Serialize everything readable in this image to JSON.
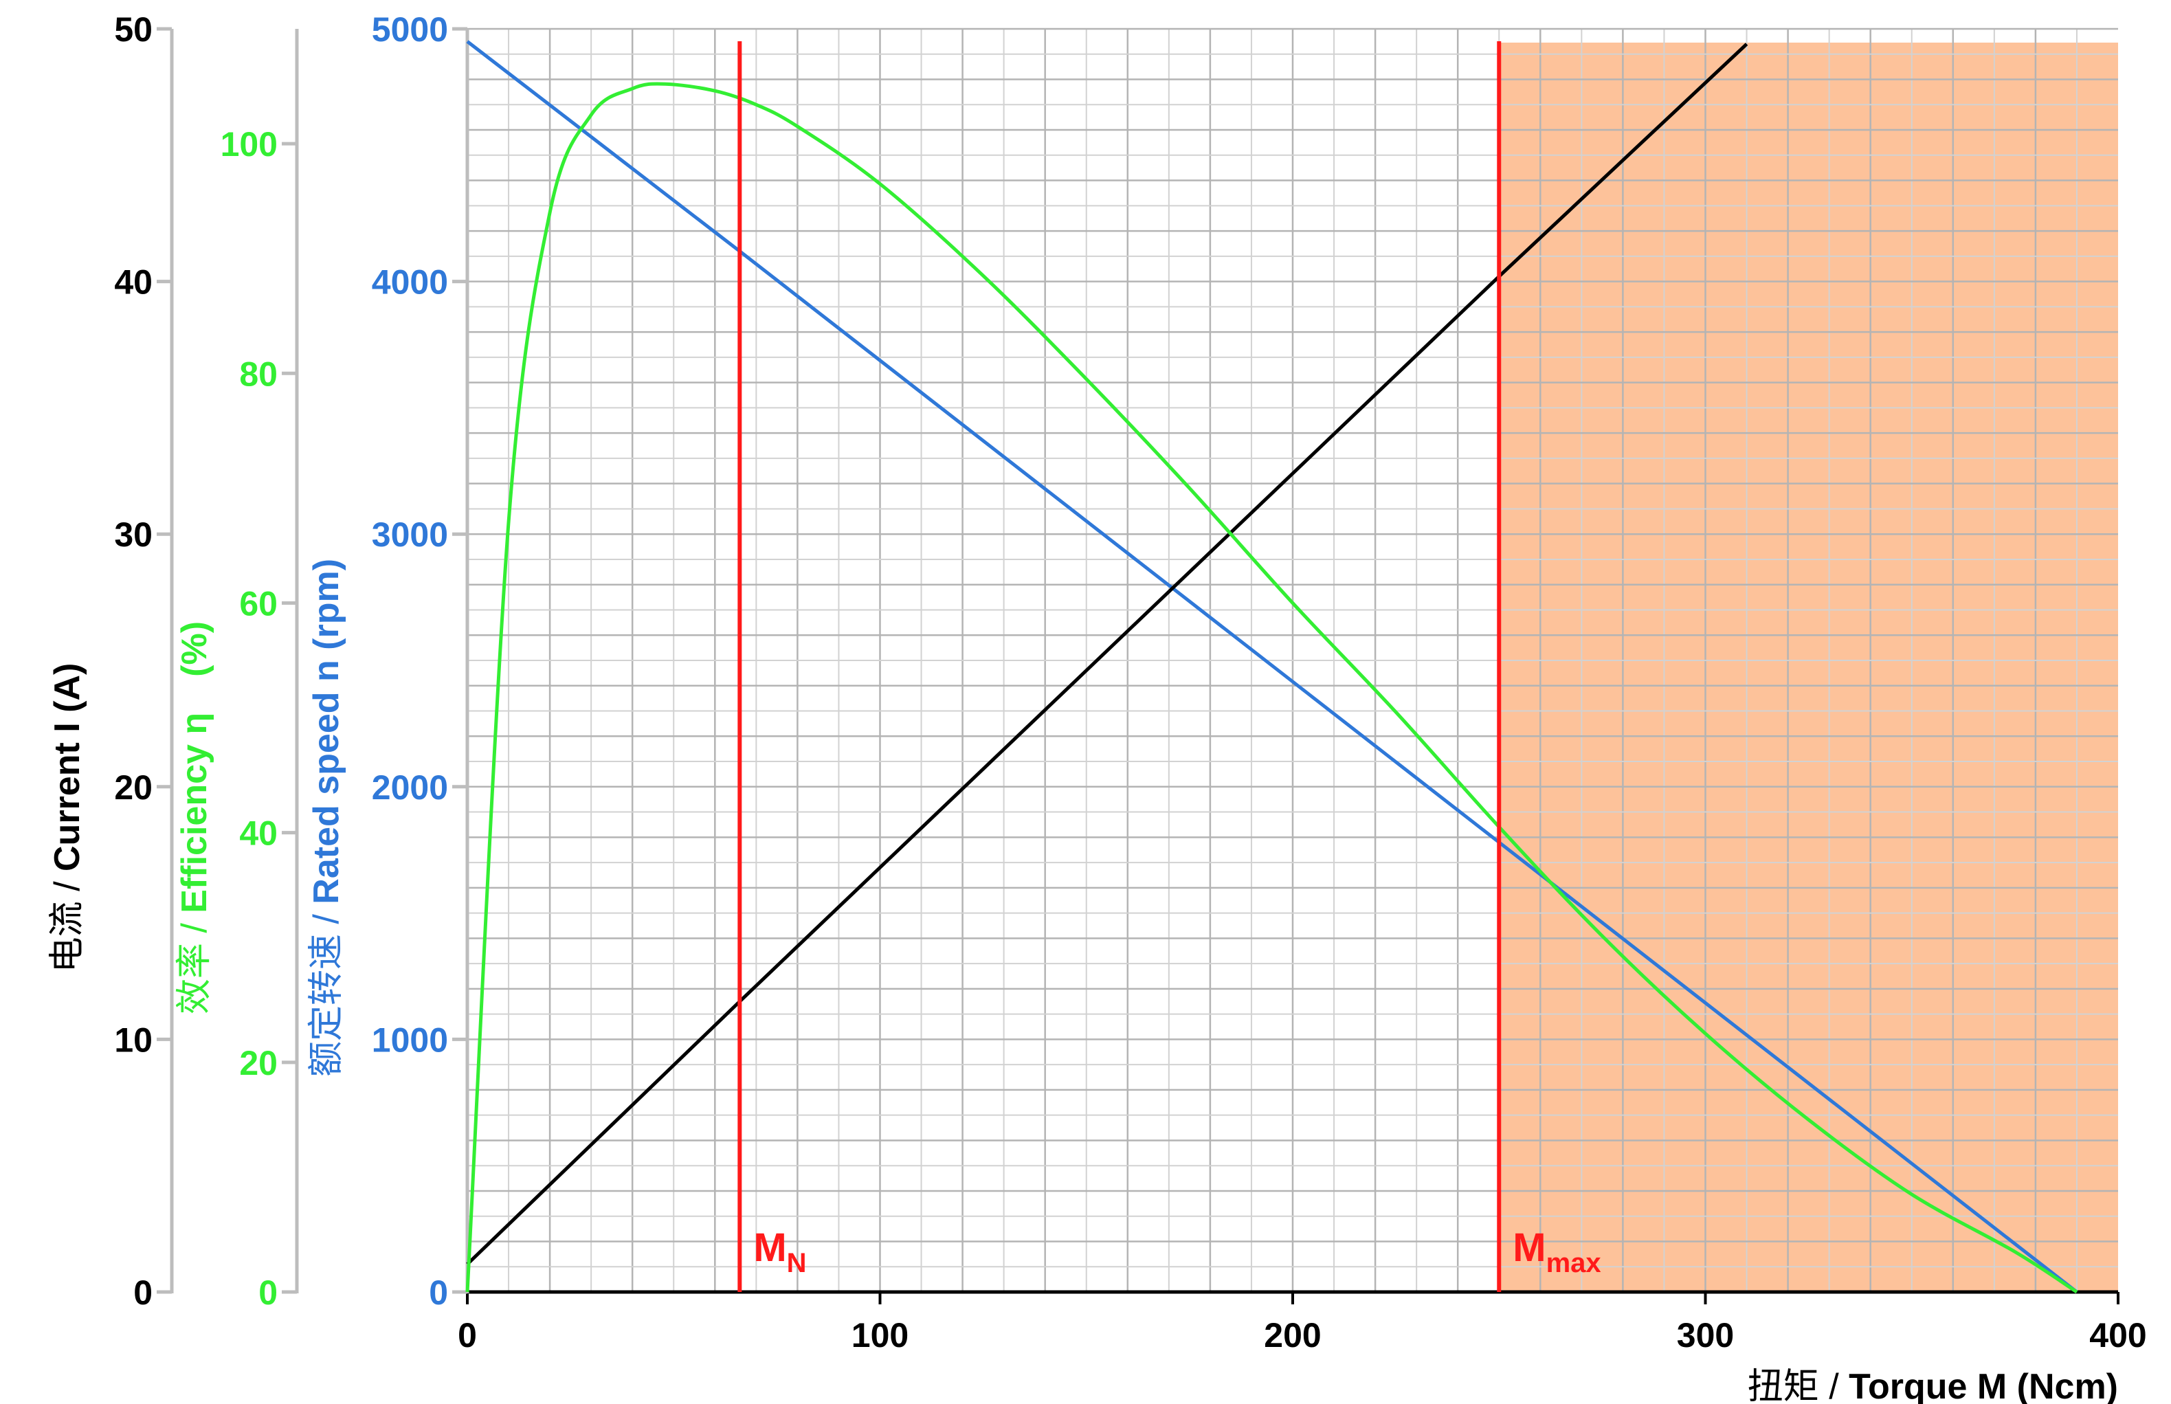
{
  "chart_data": {
    "type": "line",
    "x_axis": {
      "label_cn": "扭矩",
      "label_en": "Torque M (Ncm)",
      "min": 0,
      "max": 400,
      "ticks": [
        0,
        100,
        200,
        300,
        400
      ],
      "tick_labels": [
        "0",
        "100",
        "200",
        "300",
        "400"
      ]
    },
    "y_axes": [
      {
        "id": "current",
        "label_cn": "电流",
        "label_en": "Current I (A)",
        "color": "#000000",
        "min": 0,
        "max": 50,
        "ticks": [
          0,
          10,
          20,
          30,
          40,
          50
        ],
        "tick_labels": [
          "0",
          "10",
          "20",
          "30",
          "40",
          "50"
        ]
      },
      {
        "id": "efficiency",
        "label_cn": "效率",
        "label_en": "Efficiency η",
        "label_unit": "(%)",
        "color": "#33ee33",
        "min": 0,
        "max": 110,
        "ticks": [
          0,
          20,
          40,
          60,
          80,
          100
        ],
        "tick_labels": [
          "0",
          "20",
          "40",
          "60",
          "80",
          "100"
        ]
      },
      {
        "id": "speed",
        "label_cn": "额定转速",
        "label_en": "Rated speed n (rpm)",
        "color": "#2f78d8",
        "min": 0,
        "max": 5000,
        "ticks": [
          0,
          1000,
          2000,
          3000,
          4000,
          5000
        ],
        "tick_labels": [
          "0",
          "1000",
          "2000",
          "3000",
          "4000",
          "5000"
        ]
      }
    ],
    "series": [
      {
        "axis": "speed",
        "color": "#2f78d8",
        "x": [
          0,
          66,
          250,
          390
        ],
        "y": [
          4950,
          4120,
          1780,
          0
        ]
      },
      {
        "axis": "current",
        "color": "#000000",
        "x": [
          0,
          66,
          250,
          310
        ],
        "y": [
          1.1,
          11.5,
          40.2,
          49.4
        ]
      },
      {
        "axis": "efficiency",
        "color": "#33ee33",
        "x": [
          0,
          10,
          20,
          30,
          40,
          48,
          60,
          70,
          80,
          100,
          125,
          150,
          175,
          200,
          225,
          250,
          275,
          300,
          325,
          350,
          375,
          390
        ],
        "y": [
          0,
          67,
          94,
          102.5,
          104.8,
          105.2,
          104.6,
          103.4,
          101.5,
          96.5,
          88.5,
          79.5,
          70,
          60,
          50.5,
          40.5,
          31,
          22.5,
          15,
          8.5,
          3.5,
          0
        ]
      }
    ],
    "markers": [
      {
        "main": "M",
        "sub": "N",
        "x": 66,
        "color": "#ff1a1a"
      },
      {
        "main": "M",
        "sub": "max",
        "x": 250,
        "color": "#ff1a1a"
      }
    ],
    "overload_region": {
      "x_from": 250,
      "x_to": 400,
      "color": "#fdc29a"
    },
    "grid": true
  }
}
